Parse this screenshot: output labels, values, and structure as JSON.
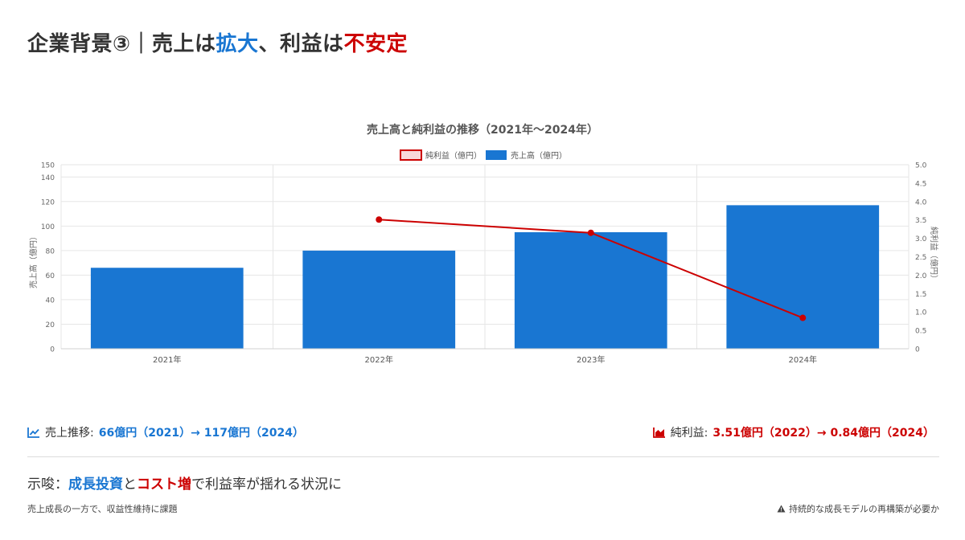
{
  "header": {
    "title_part1": "企業背景③｜売上は",
    "title_part2": "拡大",
    "title_part3": "、利益は",
    "title_part4": "不安定"
  },
  "colors": {
    "blue": "#1976d2",
    "red": "#cc0000",
    "grid": "#e6e6e6"
  },
  "chart_data": {
    "type": "bar",
    "title": "売上高と純利益の推移（2021年〜2024年）",
    "categories": [
      "2021年",
      "2022年",
      "2023年",
      "2024年"
    ],
    "series": [
      {
        "name": "売上高（億円）",
        "type": "bar",
        "axis": "left",
        "values": [
          66,
          80,
          95,
          117
        ]
      },
      {
        "name": "純利益（億円）",
        "type": "line",
        "axis": "right",
        "values": [
          null,
          3.51,
          3.15,
          0.84
        ]
      }
    ],
    "ylabel": "売上高（億円）",
    "y2label": "純利益（億円）",
    "ylim": [
      0,
      150
    ],
    "y2lim": [
      0,
      5
    ],
    "yticks": [
      "0",
      "20",
      "40",
      "60",
      "80",
      "100",
      "120",
      "140",
      "150"
    ],
    "y2ticks": [
      "0",
      "0.5",
      "1.0",
      "1.5",
      "2.0",
      "2.5",
      "3.0",
      "3.5",
      "4.0",
      "4.5",
      "5.0"
    ],
    "legend": "top",
    "grid": true
  },
  "stats": {
    "sales_label": "売上推移:",
    "sales_value": "66億円（2021）→ 117億円（2024）",
    "profit_label": "純利益:",
    "profit_value": "3.51億円（2022）→ 0.84億円（2024）"
  },
  "implication": {
    "prefix": "示唆：",
    "highlight1": "成長投資",
    "mid": "と",
    "highlight2": "コスト増",
    "suffix": "で利益率が揺れる状況に"
  },
  "notes": {
    "left": "売上成長の一方で、収益性維持に課題",
    "right": "持続的な成長モデルの再構築が必要か"
  }
}
